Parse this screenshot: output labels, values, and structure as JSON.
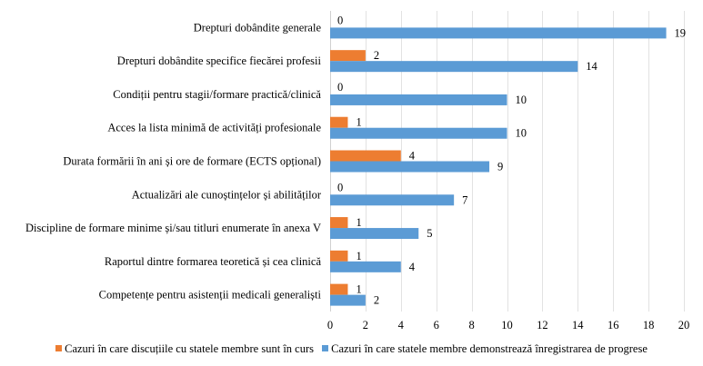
{
  "chart_data": {
    "type": "bar",
    "orientation": "horizontal",
    "title": "",
    "xlabel": "",
    "ylabel": "",
    "xlim": [
      0,
      20
    ],
    "x_ticks": [
      0,
      2,
      4,
      6,
      8,
      10,
      12,
      14,
      16,
      18,
      20
    ],
    "grid": true,
    "legend_position": "bottom",
    "categories": [
      "Drepturi dobândite generale",
      "Drepturi dobândite specifice fiecărei profesii",
      "Condiții pentru stagii/formare practică/clinică",
      "Acces la lista minimă de activități profesionale",
      "Durata formării în ani și ore de formare (ECTS opțional)",
      "Actualizări ale cunoștințelor și abilităților",
      "Discipline de formare minime și/sau titluri enumerate în anexa V",
      "Raportul dintre formarea teoretică și cea clinică",
      "Competențe pentru asistenții medicali generaliști"
    ],
    "series": [
      {
        "name": "Cazuri în care discuțiile cu statele membre sunt în curs",
        "color": "#ED7D31",
        "values": [
          0,
          2,
          0,
          1,
          4,
          0,
          1,
          1,
          1
        ]
      },
      {
        "name": "Cazuri în care statele membre demonstrează înregistrarea de progrese",
        "color": "#5B9BD5",
        "values": [
          19,
          14,
          10,
          10,
          9,
          7,
          5,
          4,
          2
        ]
      }
    ]
  }
}
